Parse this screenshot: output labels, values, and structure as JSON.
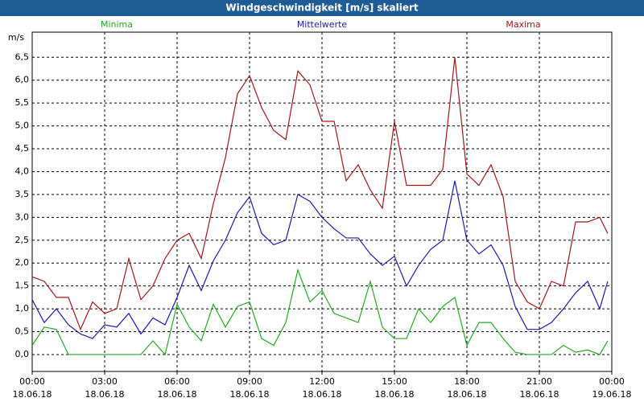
{
  "chart_data": {
    "type": "line",
    "title": "Windgeschwindigkeit [m/s] skaliert",
    "y_label": "m/s",
    "grid": true,
    "x": [
      0,
      0.5,
      1,
      1.5,
      2,
      2.5,
      3,
      3.5,
      4,
      4.5,
      5,
      5.5,
      6,
      6.5,
      7,
      7.5,
      8,
      8.5,
      9,
      9.5,
      10,
      10.5,
      11,
      11.5,
      12,
      12.5,
      13,
      13.5,
      14,
      14.5,
      15,
      15.5,
      16,
      16.5,
      17,
      17.5,
      18,
      18.5,
      19,
      19.5,
      20,
      20.5,
      21,
      21.5,
      22,
      22.5,
      23,
      23.5,
      23.83
    ],
    "xlim": [
      0,
      24
    ],
    "xticks": [
      {
        "value": 0,
        "label": "00:00",
        "date": "18.06.18"
      },
      {
        "value": 3,
        "label": "03:00",
        "date": "18.06.18"
      },
      {
        "value": 6,
        "label": "06:00",
        "date": "18.06.18"
      },
      {
        "value": 9,
        "label": "09:00",
        "date": "18.06.18"
      },
      {
        "value": 12,
        "label": "12:00",
        "date": "18.06.18"
      },
      {
        "value": 15,
        "label": "15:00",
        "date": "18.06.18"
      },
      {
        "value": 18,
        "label": "18:00",
        "date": "18.06.18"
      },
      {
        "value": 21,
        "label": "21:00",
        "date": "18.06.18"
      },
      {
        "value": 24,
        "label": "00:00",
        "date": "19.06.18"
      }
    ],
    "ylim": [
      -0.37,
      7.05
    ],
    "yticks": [
      {
        "value": 0,
        "label": "0,0"
      },
      {
        "value": 0.5,
        "label": "0,5"
      },
      {
        "value": 1,
        "label": "1,0"
      },
      {
        "value": 1.5,
        "label": "1,5"
      },
      {
        "value": 2,
        "label": "2,0"
      },
      {
        "value": 2.5,
        "label": "2,5"
      },
      {
        "value": 3,
        "label": "3,0"
      },
      {
        "value": 3.5,
        "label": "3,5"
      },
      {
        "value": 4,
        "label": "4,0"
      },
      {
        "value": 4.5,
        "label": "4,5"
      },
      {
        "value": 5,
        "label": "5,0"
      },
      {
        "value": 5.5,
        "label": "5,5"
      },
      {
        "value": 6,
        "label": "6,0"
      },
      {
        "value": 6.5,
        "label": "6,5"
      }
    ],
    "series": [
      {
        "name": "Minima",
        "color": "#22aa22",
        "values": [
          0.2,
          0.6,
          0.55,
          0,
          0,
          0,
          0,
          0,
          0,
          0,
          0.3,
          0,
          1.1,
          0.6,
          0.3,
          1.1,
          0.6,
          1.05,
          1.15,
          0.35,
          0.2,
          0.7,
          1.85,
          1.15,
          1.4,
          0.9,
          0.8,
          0.7,
          1.6,
          0.6,
          0.35,
          0.35,
          1.0,
          0.7,
          1.05,
          1.25,
          0.2,
          0.7,
          0.7,
          0.35,
          0.05,
          0,
          0,
          0,
          0.2,
          0.05,
          0.1,
          0,
          0.3
        ]
      },
      {
        "name": "Mittelwerte",
        "color": "#1a1aaa",
        "values": [
          1.2,
          0.7,
          1.0,
          0.65,
          0.45,
          0.35,
          0.65,
          0.6,
          0.9,
          0.45,
          0.8,
          0.65,
          1.25,
          1.95,
          1.4,
          2.05,
          2.5,
          3.1,
          3.45,
          2.65,
          2.4,
          2.5,
          3.5,
          3.35,
          3.0,
          2.75,
          2.55,
          2.55,
          2.2,
          1.95,
          2.15,
          1.5,
          1.95,
          2.3,
          2.5,
          3.8,
          2.5,
          2.2,
          2.4,
          1.95,
          1.05,
          0.55,
          0.55,
          0.7,
          1.0,
          1.35,
          1.6,
          1.0,
          1.6
        ]
      },
      {
        "name": "Maxima",
        "color": "#a01818",
        "values": [
          1.7,
          1.6,
          1.25,
          1.25,
          0.55,
          1.15,
          0.9,
          1.0,
          2.1,
          1.2,
          1.5,
          2.1,
          2.5,
          2.65,
          2.1,
          3.3,
          4.3,
          5.7,
          6.1,
          5.4,
          4.9,
          4.7,
          6.2,
          5.9,
          5.1,
          5.1,
          3.8,
          4.15,
          3.6,
          3.2,
          5.1,
          3.7,
          3.7,
          3.7,
          4.05,
          6.5,
          3.95,
          3.7,
          4.15,
          3.45,
          1.6,
          1.15,
          1.0,
          1.6,
          1.5,
          2.9,
          2.9,
          3.0,
          2.65
        ]
      }
    ]
  }
}
